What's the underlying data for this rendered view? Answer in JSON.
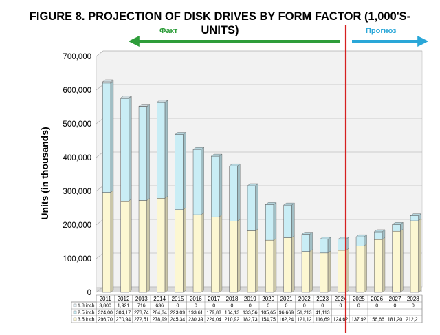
{
  "figure": {
    "title_line1": "FIGURE 8.  PROJECTION OF DISK DRIVES BY FORM FACTOR (1,000'S-",
    "title_line2": "UNITS)"
  },
  "annotations": {
    "fact_label": "Факт",
    "forecast_label": "Прогноз",
    "fact_color": "#2e9d3a",
    "forecast_color": "#2aa7d8",
    "divider_color": "#d62020"
  },
  "chart_data": {
    "type": "bar",
    "stacked": true,
    "categories": [
      "2011",
      "2012",
      "2013",
      "2014",
      "2015",
      "2016",
      "2017",
      "2018",
      "2019",
      "2020",
      "2021",
      "2022",
      "2023",
      "2024",
      "2025",
      "2026",
      "2027",
      "2028"
    ],
    "ylabel": "Units (in thousands)",
    "ylim": [
      0,
      700000
    ],
    "yticks": [
      "0",
      "100,000",
      "200,000",
      "300,000",
      "400,000",
      "500,000",
      "600,000",
      "700,000"
    ],
    "grid": true,
    "series": [
      {
        "name": "3.5 inch",
        "color": "#fcf7d2",
        "values": [
          296700,
          270940,
          272510,
          278990,
          245340,
          230390,
          224040,
          210920,
          182730,
          154750,
          162240,
          121120,
          116690,
          124620,
          137920,
          156660,
          181200,
          212210
        ],
        "table_text": [
          "296,70",
          "270,94",
          "272,51",
          "278,99",
          "245,34",
          "230,39",
          "224,04",
          "210,92",
          "182,73",
          "154,75",
          "162,24",
          "121,12",
          "116,69",
          "124,62",
          "137,92",
          "156,66",
          "181,20",
          "212,21"
        ]
      },
      {
        "name": "2.5 inch",
        "color": "#c9edf5",
        "values": [
          324000,
          304170,
          278740,
          284340,
          223090,
          193610,
          179830,
          164130,
          133560,
          105650,
          96669,
          51213,
          41113,
          33000,
          27000,
          23000,
          20000,
          15000
        ],
        "table_text": [
          "324,00",
          "304,17",
          "278,74",
          "284,34",
          "223,09",
          "193,61",
          "179,83",
          "164,13",
          "133,56",
          "105,65",
          "96,669",
          "51,213",
          "41,113",
          "",
          "",
          "",
          "",
          ""
        ]
      },
      {
        "name": "1.8 inch",
        "color": "#e6f2f7",
        "values": [
          3800,
          1921,
          716,
          636,
          0,
          0,
          0,
          0,
          0,
          0,
          0,
          0,
          0,
          0,
          0,
          0,
          0,
          0
        ],
        "table_text": [
          "3,800",
          "1,921",
          "716",
          "636",
          "0",
          "0",
          "0",
          "0",
          "0",
          "0",
          "0",
          "0",
          "0",
          "0",
          "0",
          "0",
          "0",
          "0"
        ]
      }
    ]
  }
}
